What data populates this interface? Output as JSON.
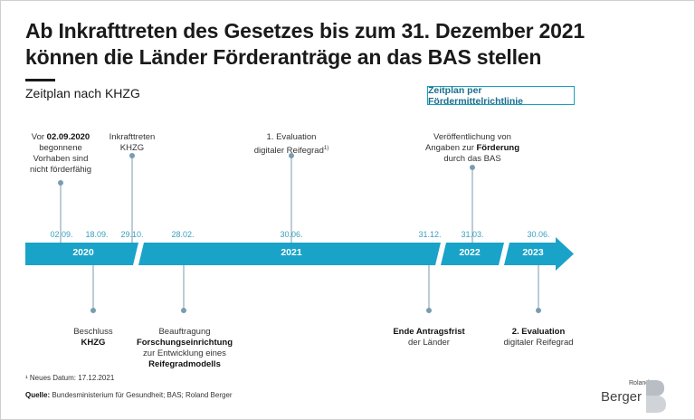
{
  "header": {
    "title_line1": "Ab Inkrafttreten des Gesetzes bis zum 31. Dezember 2021",
    "title_line2": "können die Länder Förderanträge an das BAS stellen",
    "subtitle": "Zeitplan nach KHZG",
    "pill_label": "Zeitplan per Fördermittelrichtlinie"
  },
  "timeline": {
    "years": [
      "2020",
      "2021",
      "2022",
      "2023"
    ],
    "dates": [
      "02.09.",
      "18.09.",
      "29.10.",
      "28.02.",
      "30.06.",
      "31.12.",
      "31.03.",
      "30.06."
    ]
  },
  "events_top": {
    "e1_pre": "Vor ",
    "e1_bold": "02.09.2020",
    "e1_rest1": "begonnene",
    "e1_rest2": "Vorhaben sind",
    "e1_rest3": "nicht förderfähig",
    "e2_line1": "Inkrafttreten",
    "e2_line2": "KHZG",
    "e3_line1": "1. Evaluation",
    "e3_line2": "digitaler Reifegrad",
    "e3_sup": "1)",
    "e4_line1": "Veröffentlichung von",
    "e4_line2a": "Angaben zur ",
    "e4_line2b": "Förderung",
    "e4_line3": "durch das BAS"
  },
  "events_bottom": {
    "b1_line1": "Beschluss",
    "b1_line2": "KHZG",
    "b2_line1": "Beauftragung",
    "b2_line2": "Forschungseinrichtung",
    "b2_line3": "zur Entwicklung eines",
    "b2_line4": "Reifegradmodells",
    "b3_line1": "Ende Antragsfrist",
    "b3_line2": "der Länder",
    "b4_line1": "2. Evaluation",
    "b4_line2": "digitaler Reifegrad"
  },
  "footer": {
    "footnote": "¹ Neues Datum: 17.12.2021",
    "source_label": "Quelle:",
    "source_text": " Bundesministerium für Gesundheit; BAS; Roland Berger"
  },
  "logo": {
    "small": "Roland",
    "big": "Berger"
  },
  "colors": {
    "arrow": "#1aa3c8",
    "accent_text": "#3a9fc0",
    "connector": "#7a9bb0"
  }
}
